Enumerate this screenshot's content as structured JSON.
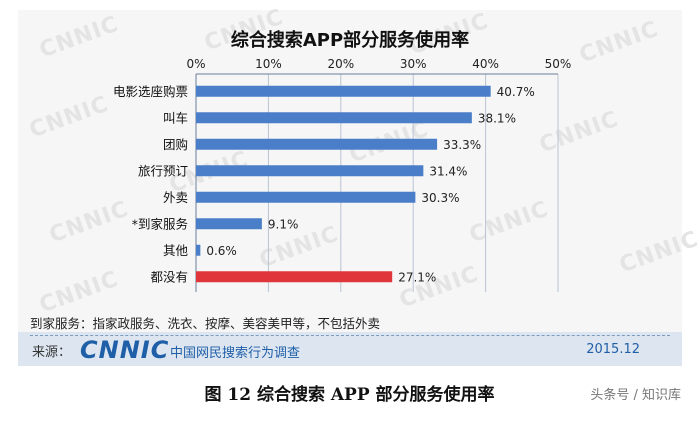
{
  "chart_data": {
    "type": "bar",
    "orientation": "horizontal",
    "title": "综合搜索APP部分服务使用率",
    "categories": [
      "电影选座购票",
      "叫车",
      "团购",
      "旅行预订",
      "外卖",
      "*到家服务",
      "其他",
      "都没有"
    ],
    "values": [
      40.7,
      38.1,
      33.3,
      31.4,
      30.3,
      9.1,
      0.6,
      27.1
    ],
    "value_labels": [
      "40.7%",
      "38.1%",
      "33.3%",
      "31.4%",
      "30.3%",
      "9.1%",
      "0.6%",
      "27.1%"
    ],
    "x_ticks": [
      "0%",
      "10%",
      "20%",
      "30%",
      "40%",
      "50%"
    ],
    "xlim": [
      0,
      50
    ],
    "axis_position": "top",
    "grid": true,
    "colors": {
      "bar": "#4a7ec8",
      "highlight": "#e0353b",
      "highlight_category": "都没有"
    }
  },
  "footnote": "到家服务：指家政服务、洗衣、按摩、美容美甲等，不包括外卖",
  "source": {
    "label": "来源：",
    "logo": "CNNIC",
    "org": "中国网民搜索行为调查",
    "date": "2015.12"
  },
  "watermark": "CNNIC",
  "caption": "图 12   综合搜索 APP 部分服务使用率",
  "credit": "头条号 / 知识库"
}
